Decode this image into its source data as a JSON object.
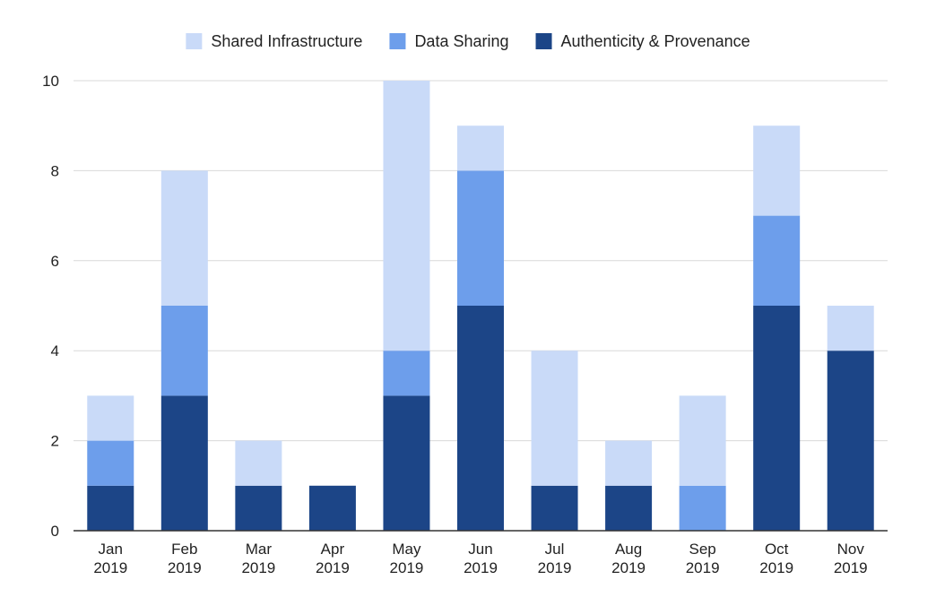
{
  "chart_data": {
    "type": "bar",
    "stacked": true,
    "title": "",
    "xlabel": "",
    "ylabel": "",
    "ylim": [
      0,
      10
    ],
    "yticks": [
      0,
      2,
      4,
      6,
      8,
      10
    ],
    "grid": true,
    "legend": "top",
    "categories": [
      [
        "Jan",
        "2019"
      ],
      [
        "Feb",
        "2019"
      ],
      [
        "Mar",
        "2019"
      ],
      [
        "Apr",
        "2019"
      ],
      [
        "May",
        "2019"
      ],
      [
        "Jun",
        "2019"
      ],
      [
        "Jul",
        "2019"
      ],
      [
        "Aug",
        "2019"
      ],
      [
        "Sep",
        "2019"
      ],
      [
        "Oct",
        "2019"
      ],
      [
        "Nov",
        "2019"
      ]
    ],
    "series": [
      {
        "name": "Authenticity & Provenance",
        "color": "#1c4587",
        "values": [
          1,
          3,
          1,
          1,
          3,
          5,
          1,
          1,
          0,
          5,
          4
        ]
      },
      {
        "name": "Data Sharing",
        "color": "#6d9eeb",
        "values": [
          1,
          2,
          0,
          0,
          1,
          3,
          0,
          0,
          1,
          2,
          0
        ]
      },
      {
        "name": "Shared Infrastructure",
        "color": "#c9daf8",
        "values": [
          1,
          3,
          1,
          0,
          6,
          1,
          3,
          1,
          2,
          2,
          1
        ]
      }
    ],
    "legend_order": [
      2,
      1,
      0
    ]
  }
}
